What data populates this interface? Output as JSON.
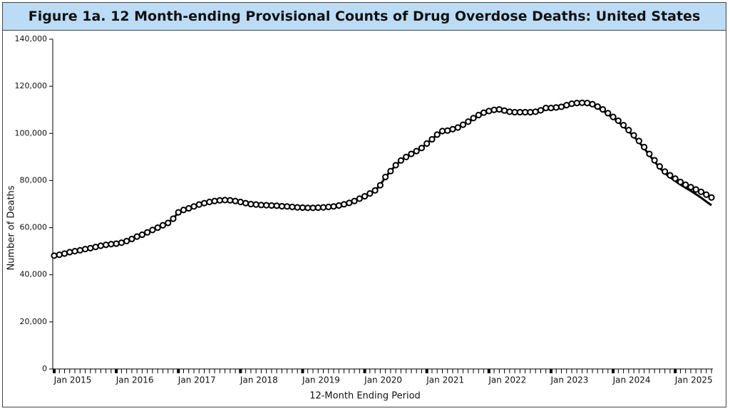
{
  "chart_data": {
    "type": "line",
    "title": "Figure 1a. 12 Month-ending Provisional Counts of Drug Overdose Deaths: United States",
    "y_label": "Number of Deaths",
    "x_label": "12-Month Ending Period",
    "categories": [
      "Jan 2015",
      null,
      null,
      null,
      null,
      null,
      null,
      null,
      null,
      null,
      null,
      null,
      "Jan 2016",
      null,
      null,
      null,
      null,
      null,
      null,
      null,
      null,
      null,
      null,
      null,
      "Jan 2017",
      null,
      null,
      null,
      null,
      null,
      null,
      null,
      null,
      null,
      null,
      null,
      "Jan 2018",
      null,
      null,
      null,
      null,
      null,
      null,
      null,
      null,
      null,
      null,
      null,
      "Jan 2019",
      null,
      null,
      null,
      null,
      null,
      null,
      null,
      null,
      null,
      null,
      null,
      "Jan 2020",
      null,
      null,
      null,
      null,
      null,
      null,
      null,
      null,
      null,
      null,
      null,
      "Jan 2021",
      null,
      null,
      null,
      null,
      null,
      null,
      null,
      null,
      null,
      null,
      null,
      "Jan 2022",
      null,
      null,
      null,
      null,
      null,
      null,
      null,
      null,
      null,
      null,
      null,
      "Jan 2023",
      null,
      null,
      null,
      null,
      null,
      null,
      null,
      null,
      null,
      null,
      null,
      "Jan 2024",
      null,
      null,
      null,
      null,
      null,
      null,
      null,
      null,
      null,
      null,
      null,
      "Jan 2025",
      null,
      null,
      null,
      null,
      null,
      null,
      null
    ],
    "series": [
      {
        "color": "#000000",
        "style": "line",
        "values": [
          48100,
          48500,
          49000,
          49600,
          50000,
          50400,
          50900,
          51300,
          51800,
          52300,
          52700,
          53000,
          53200,
          53600,
          54300,
          55200,
          56200,
          57000,
          58000,
          59000,
          60000,
          61000,
          62000,
          63800,
          66500,
          67500,
          68200,
          69000,
          69800,
          70400,
          70900,
          71300,
          71600,
          71700,
          71600,
          71300,
          70900,
          70400,
          70000,
          69800,
          69600,
          69500,
          69400,
          69300,
          69100,
          69000,
          68800,
          68600,
          68500,
          68400,
          68400,
          68500,
          68600,
          68800,
          69000,
          69400,
          69900,
          70500,
          71300,
          72300,
          73300,
          74500,
          75800,
          78000,
          81500,
          84000,
          86500,
          88500,
          90000,
          91300,
          92500,
          93800,
          95700,
          97500,
          99500,
          100800,
          101000,
          101600,
          102300,
          103500,
          104800,
          106300,
          107500,
          108400,
          109000,
          109400,
          109600,
          109200,
          108700,
          108500,
          108500,
          108500,
          108500,
          108700,
          109300,
          110200,
          110300,
          110500,
          110800,
          111500,
          112100,
          112400,
          112500,
          112400,
          111900,
          110900,
          109700,
          108100,
          106500,
          104900,
          103000,
          100900,
          98700,
          96300,
          93700,
          90800,
          88100,
          85400,
          83100,
          81400,
          79800,
          78300,
          76900,
          75600,
          74200,
          72700,
          71100,
          69500
        ]
      },
      {
        "color": "#000000",
        "style": "circles",
        "values": [
          48100,
          48500,
          49000,
          49600,
          50000,
          50400,
          50900,
          51300,
          51800,
          52300,
          52700,
          53000,
          53200,
          53600,
          54300,
          55200,
          56200,
          57000,
          58000,
          59000,
          60000,
          61000,
          62000,
          63800,
          66500,
          67500,
          68200,
          69000,
          69800,
          70400,
          70900,
          71300,
          71600,
          71700,
          71600,
          71300,
          70900,
          70400,
          70000,
          69800,
          69600,
          69500,
          69400,
          69300,
          69100,
          69000,
          68800,
          68600,
          68500,
          68400,
          68400,
          68500,
          68600,
          68800,
          69000,
          69400,
          69900,
          70500,
          71300,
          72300,
          73300,
          74500,
          75800,
          78000,
          81500,
          84000,
          86500,
          88500,
          90000,
          91300,
          92500,
          93800,
          95700,
          97500,
          99500,
          101000,
          101200,
          101800,
          102500,
          103700,
          105000,
          106500,
          107800,
          108800,
          109500,
          110000,
          110200,
          109700,
          109200,
          109000,
          109000,
          109000,
          109000,
          109200,
          109800,
          110800,
          110800,
          111000,
          111300,
          112000,
          112600,
          112900,
          113000,
          112900,
          112400,
          111400,
          110200,
          108600,
          107000,
          105400,
          103500,
          101400,
          99200,
          96800,
          94200,
          91300,
          88600,
          86000,
          83800,
          82200,
          80800,
          79400,
          78200,
          77200,
          76200,
          75200,
          74000,
          72800
        ]
      }
    ],
    "ylim": [
      0,
      140000
    ],
    "yticks": [
      0,
      {
        "value": 20000,
        "label": "20,000"
      },
      {
        "value": 40000,
        "label": "40,000"
      },
      {
        "value": 60000,
        "label": "60,000"
      },
      {
        "value": 80000,
        "label": "80,000"
      },
      {
        "value": 100000,
        "label": "100,000"
      },
      {
        "value": 120000,
        "label": "120,000"
      },
      {
        "value": 140000,
        "label": "140,000"
      }
    ],
    "grid": false
  }
}
